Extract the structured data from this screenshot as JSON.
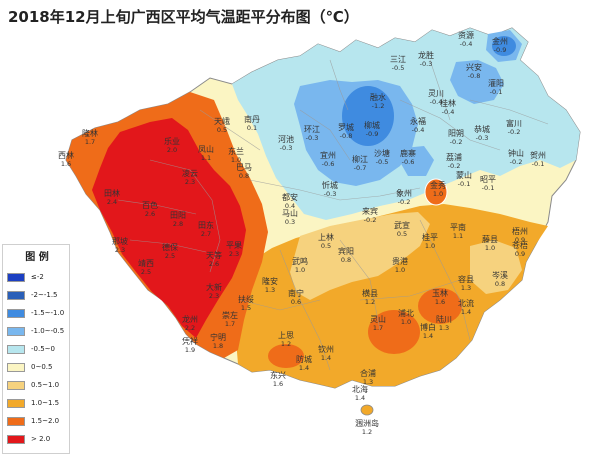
{
  "title": "2018年12月上旬广西区平均气温距平分布图（℃）",
  "legend": {
    "title": "图 例",
    "items": [
      {
        "label": "≤-2",
        "color": "#1c3fc2"
      },
      {
        "label": "-2~-1.5",
        "color": "#2a5fb8"
      },
      {
        "label": "-1.5~-1.0",
        "color": "#3f8be0"
      },
      {
        "label": "-1.0~-0.5",
        "color": "#79b7ee"
      },
      {
        "label": "-0.5~0",
        "color": "#b7e6ee"
      },
      {
        "label": "0~0.5",
        "color": "#fbf5c3"
      },
      {
        "label": "0.5~1.0",
        "color": "#f6d27e"
      },
      {
        "label": "1.0~1.5",
        "color": "#f2a92a"
      },
      {
        "label": "1.5~2.0",
        "color": "#ef6c19"
      },
      {
        "label": "> 2.0",
        "color": "#e2171b"
      }
    ]
  },
  "places": [
    {
      "name": "资源",
      "value": "-0.4"
    },
    {
      "name": "金州",
      "value": "-0.9"
    },
    {
      "name": "三江",
      "value": "-0.5"
    },
    {
      "name": "龙胜",
      "value": "-0.3"
    },
    {
      "name": "兴安",
      "value": "-0.8"
    },
    {
      "name": "灌阳",
      "value": "-0.1"
    },
    {
      "name": "融水",
      "value": "-1.2"
    },
    {
      "name": "灵川",
      "value": "-0.4"
    },
    {
      "name": "桂林",
      "value": "-0.4"
    },
    {
      "name": "罗城",
      "value": "-0.8"
    },
    {
      "name": "柳城",
      "value": "-0.9"
    },
    {
      "name": "永福",
      "value": "-0.4"
    },
    {
      "name": "阳朔",
      "value": "-0.2"
    },
    {
      "name": "恭城",
      "value": "-0.3"
    },
    {
      "name": "富川",
      "value": "-0.2"
    },
    {
      "name": "钟山",
      "value": "-0.2"
    },
    {
      "name": "贺州",
      "value": "-0.1"
    },
    {
      "name": "昭平",
      "value": "-0.1"
    },
    {
      "name": "蒙山",
      "value": "-0.1"
    },
    {
      "name": "荔浦",
      "value": "-0.2"
    },
    {
      "name": "鹿寨",
      "value": "-0.6"
    },
    {
      "name": "柳江",
      "value": "-0.7"
    },
    {
      "name": "沙塘",
      "value": "-0.5"
    },
    {
      "name": "金秀",
      "value": "1.0"
    },
    {
      "name": "环江",
      "value": "-0.3"
    },
    {
      "name": "河池",
      "value": "-0.3"
    },
    {
      "name": "宜州",
      "value": "-0.6"
    },
    {
      "name": "南丹",
      "value": "0.1"
    },
    {
      "name": "天峨",
      "value": "0.5"
    },
    {
      "name": "凤山",
      "value": "1.1"
    },
    {
      "name": "东兰",
      "value": "1.0"
    },
    {
      "name": "巴马",
      "value": "0.8"
    },
    {
      "name": "都安",
      "value": "0.4"
    },
    {
      "name": "马山",
      "value": "0.3"
    },
    {
      "name": "忻城",
      "value": "-0.3"
    },
    {
      "name": "来宾",
      "value": "-0.2"
    },
    {
      "name": "象州",
      "value": "-0.2"
    },
    {
      "name": "武宣",
      "value": "0.5"
    },
    {
      "name": "桂平",
      "value": "1.0"
    },
    {
      "name": "平南",
      "value": "1.1"
    },
    {
      "name": "藤县",
      "value": "1.0"
    },
    {
      "name": "梧州",
      "value": "0.9"
    },
    {
      "name": "苍梧",
      "value": "0.9"
    },
    {
      "name": "岑溪",
      "value": "0.8"
    },
    {
      "name": "容县",
      "value": "1.3"
    },
    {
      "name": "玉林",
      "value": "1.6"
    },
    {
      "name": "北流",
      "value": "1.4"
    },
    {
      "name": "陆川",
      "value": "1.3"
    },
    {
      "name": "博白",
      "value": "1.4"
    },
    {
      "name": "浦北",
      "value": "1.0"
    },
    {
      "name": "贵港",
      "value": "1.0"
    },
    {
      "name": "宾阳",
      "value": "0.8"
    },
    {
      "name": "上林",
      "value": "0.5"
    },
    {
      "name": "武鸣",
      "value": "1.0"
    },
    {
      "name": "南宁",
      "value": "0.6"
    },
    {
      "name": "横县",
      "value": "1.2"
    },
    {
      "name": "灵山",
      "value": "1.7"
    },
    {
      "name": "钦州",
      "value": "1.4"
    },
    {
      "name": "合浦",
      "value": "1.3"
    },
    {
      "name": "北海",
      "value": "1.4"
    },
    {
      "name": "防城",
      "value": "1.4"
    },
    {
      "name": "东兴",
      "value": "1.6"
    },
    {
      "name": "上思",
      "value": "1.2"
    },
    {
      "name": "扶绥",
      "value": "1.5"
    },
    {
      "name": "崇左",
      "value": "1.7"
    },
    {
      "name": "宁明",
      "value": "1.8"
    },
    {
      "name": "凭祥",
      "value": "1.9"
    },
    {
      "name": "龙州",
      "value": "2.2"
    },
    {
      "name": "大新",
      "value": "2.3"
    },
    {
      "name": "天等",
      "value": "2.6"
    },
    {
      "name": "德保",
      "value": "2.5"
    },
    {
      "name": "靖西",
      "value": "2.5"
    },
    {
      "name": "那坡",
      "value": "2.3"
    },
    {
      "name": "百色",
      "value": "2.6"
    },
    {
      "name": "田阳",
      "value": "2.8"
    },
    {
      "name": "田东",
      "value": "2.7"
    },
    {
      "name": "平果",
      "value": "2.3"
    },
    {
      "name": "隆安",
      "value": "1.3"
    },
    {
      "name": "田林",
      "value": "2.4"
    },
    {
      "name": "隆林",
      "value": "1.7"
    },
    {
      "name": "西林",
      "value": "1.6"
    },
    {
      "name": "乐业",
      "value": "2.0"
    },
    {
      "name": "凌云",
      "value": "2.3"
    },
    {
      "name": "涠洲岛",
      "value": "1.2"
    }
  ]
}
